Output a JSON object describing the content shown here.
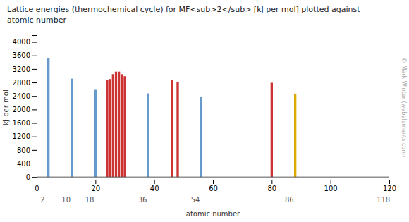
{
  "chart_data": {
    "type": "bar",
    "title": "Lattice energies (thermochemical cycle) for MF<sub>2</sub> [kJ per mol] plotted against",
    "subtitle": "atomic number",
    "ylabel": "kJ per mol",
    "xlabel": "atomic number",
    "x": [
      4,
      12,
      20,
      24,
      25,
      26,
      27,
      28,
      29,
      30,
      38,
      46,
      48,
      56,
      80,
      88
    ],
    "values": [
      3526,
      2913,
      2602,
      2869,
      2902,
      3046,
      3121,
      3121,
      3046,
      2985,
      2476,
      2870,
      2809,
      2373,
      2791,
      2470
    ],
    "colors": [
      "#6699cc",
      "#6699cc",
      "#6699cc",
      "#cc3333",
      "#cc3333",
      "#cc3333",
      "#cc3333",
      "#cc3333",
      "#cc3333",
      "#cc3333",
      "#6699cc",
      "#cc3333",
      "#cc3333",
      "#6699cc",
      "#cc3333",
      "#ddaa00"
    ],
    "xlim": [
      0,
      120
    ],
    "xticks": [
      0,
      20,
      40,
      60,
      80,
      100,
      120
    ],
    "x2ticks": [
      2,
      10,
      18,
      36,
      54,
      86,
      118
    ],
    "ylim": [
      -80,
      4200
    ],
    "yticks": [
      0,
      400,
      800,
      1200,
      1600,
      2000,
      2400,
      2800,
      3200,
      3600,
      4000
    ],
    "annotations": [
      "© Mark Winter (webelements.com)"
    ],
    "grid": false
  }
}
